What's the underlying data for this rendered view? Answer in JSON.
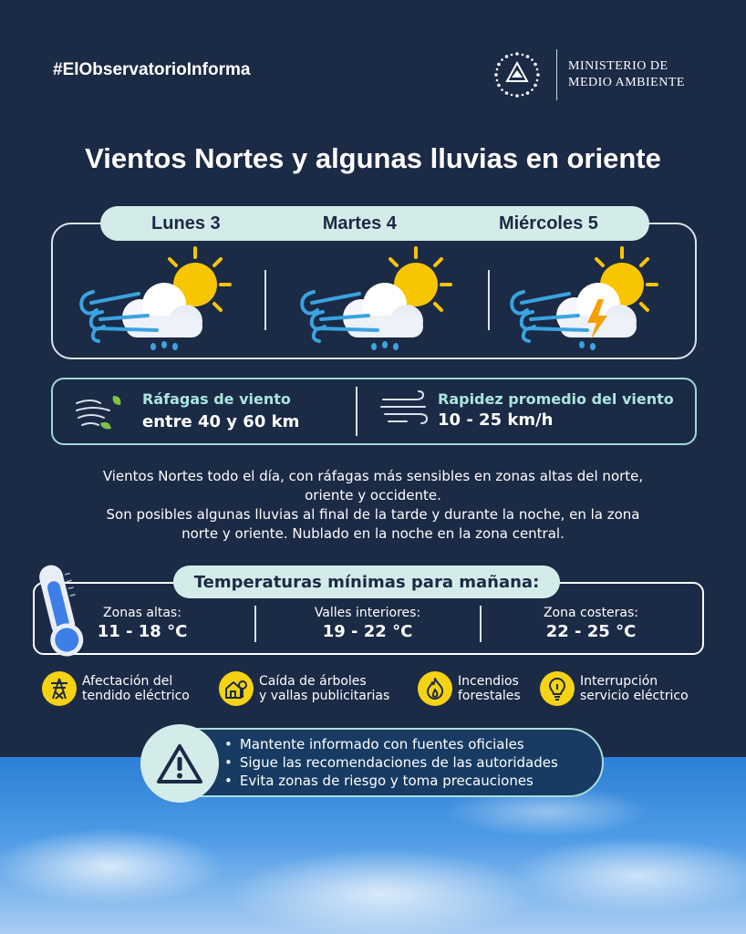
{
  "header": {
    "hashtag": "#ElObservatorioInforma",
    "ministry_line1": "MINISTERIO DE",
    "ministry_line2": "MEDIO AMBIENTE"
  },
  "title": "Vientos Nortes y algunas lluvias en oriente",
  "days": [
    {
      "label": "Lunes 3",
      "icon": "wind-sun-cloud-rain"
    },
    {
      "label": "Martes 4",
      "icon": "wind-sun-cloud-rain"
    },
    {
      "label": "Miércoles 5",
      "icon": "wind-sun-cloud-storm"
    }
  ],
  "wind": {
    "gusts_label": "Ráfagas de viento",
    "gusts_value": "entre 40 y 60 km",
    "speed_label": "Rapidez promedio del viento",
    "speed_value": "10 - 25 km/h"
  },
  "description": {
    "line1": "Vientos Nortes todo el día, con ráfagas más sensibles en zonas altas del norte,",
    "line2": "oriente y occidente.",
    "line3": "Son posibles algunas lluvias al final de la tarde y durante la noche, en la zona",
    "line4": "norte y oriente. Nublado en la noche en la zona central."
  },
  "temperatures": {
    "title": "Temperaturas mínimas para mañana:",
    "zones": [
      {
        "label": "Zonas altas:",
        "value": "11 - 18 °C"
      },
      {
        "label": "Valles interiores:",
        "value": "19 - 22 °C"
      },
      {
        "label": "Zona costeras:",
        "value": "22 - 25 °C"
      }
    ]
  },
  "risks": [
    {
      "line1": "Afectación del",
      "line2": "tendido eléctrico",
      "icon": "power-tower-icon"
    },
    {
      "line1": "Caída de árboles",
      "line2": "y vallas publicitarias",
      "icon": "fallen-tree-house-icon"
    },
    {
      "line1": "Incendios",
      "line2": "forestales",
      "icon": "fire-icon"
    },
    {
      "line1": "Interrupción",
      "line2": "servicio eléctrico",
      "icon": "light-bulb-icon"
    }
  ],
  "recommendations": [
    "Mantente informado con fuentes oficiales",
    "Sigue las recomendaciones de las autoridades",
    "Evita zonas de riesgo y toma precauciones"
  ],
  "colors": {
    "background": "#1b2a45",
    "accent_mint": "#d3ecea",
    "accent_teal_text": "#a9e6e0",
    "risk_yellow": "#f5d312",
    "sun_yellow": "#f7c600",
    "wind_blue": "#3aa3e0",
    "thermometer_blue": "#3d7ee8"
  }
}
